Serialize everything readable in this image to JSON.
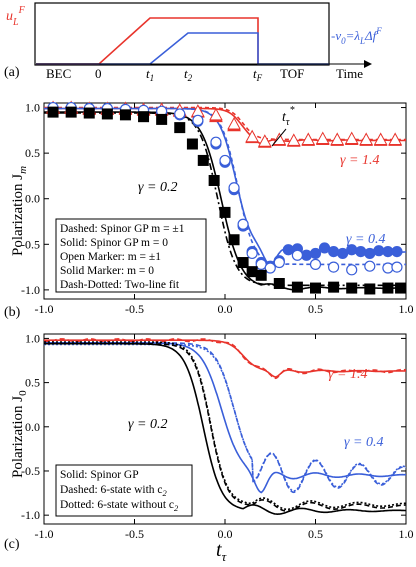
{
  "colors": {
    "red": "#e8342c",
    "blue": "#3a5fd9",
    "black": "#000000"
  },
  "panel_a": {
    "label": "(a)",
    "left_label": "u",
    "left_sub": "L",
    "left_sup": "F",
    "right_label": "ν",
    "right_sub": "0",
    "right_eq": "=λ",
    "right_eq_sub": "L",
    "right_tail": "Δf",
    "right_tail_sup": "F",
    "phases": {
      "bec": "BEC",
      "tof": "TOF"
    },
    "ticks": [
      {
        "base": "0",
        "sub": ""
      },
      {
        "base": "t",
        "sub": "1"
      },
      {
        "base": "t",
        "sub": "2"
      },
      {
        "base": "t",
        "sub": "F"
      }
    ],
    "xlabel": "Time",
    "chart_data": {
      "type": "line",
      "title": "",
      "x": [
        "BEC",
        "0",
        "t1",
        "t2",
        "tF",
        "TOF"
      ],
      "series": [
        {
          "name": "u_L^F",
          "color": "red",
          "points": [
            [
              "BEC",
              0
            ],
            [
              "0",
              0
            ],
            [
              "t1",
              1
            ],
            [
              "tF",
              1
            ],
            [
              "tF",
              0
            ],
            [
              "TOF",
              0
            ]
          ]
        },
        {
          "name": "ν0=λL Δf^F",
          "color": "blue",
          "points": [
            [
              "BEC",
              0
            ],
            [
              "t1",
              0
            ],
            [
              "t2",
              0.72
            ],
            [
              "tF",
              0.72
            ],
            [
              "tF",
              0
            ],
            [
              "TOF",
              0
            ]
          ]
        }
      ]
    }
  },
  "panel_b": {
    "label": "(b)",
    "ylabel_main": "Polarization J",
    "ylabel_sub": "m",
    "annotation": {
      "base": "t",
      "sub": "τ",
      "sup": "*"
    },
    "gamma_labels": [
      {
        "text": "γ = 1.4",
        "color": "red"
      },
      {
        "text": "γ = 0.4",
        "color": "blue"
      },
      {
        "text": "γ = 0.2",
        "color": "black"
      }
    ],
    "legend": [
      "Dashed: Spinor GP m = ±1",
      "Solid: Spinor GP m = 0",
      "Open Marker: m = ±1",
      "Solid Marker: m = 0",
      "Dash-Dotted: Two-line fit"
    ],
    "chart_data": {
      "type": "scatter",
      "title": "",
      "xlabel": "",
      "ylabel": "Polarization J_m",
      "xlim": [
        -1.0,
        1.0
      ],
      "ylim": [
        -1.1,
        1.05
      ],
      "xticks": [
        "-1.0",
        "-0.5",
        "0.0",
        "0.5",
        "1.0"
      ],
      "yticks": [
        "1.0",
        "0.5",
        "0.0",
        "-0.5",
        "-1.0"
      ],
      "series": [
        {
          "name": "γ = 1.4 m=0",
          "marker": "triangle",
          "filled": true,
          "color": "red",
          "x": [
            -0.95,
            -0.85,
            -0.75,
            -0.65,
            -0.55,
            -0.45,
            -0.35,
            -0.25,
            -0.15,
            -0.05,
            0.05,
            0.15,
            0.22,
            0.3,
            0.38,
            0.46,
            0.54,
            0.62,
            0.7,
            0.78,
            0.86,
            0.94
          ],
          "y": [
            0.99,
            0.99,
            0.98,
            0.98,
            0.98,
            0.97,
            0.97,
            0.96,
            0.95,
            0.9,
            0.8,
            0.67,
            0.62,
            0.64,
            0.63,
            0.64,
            0.65,
            0.64,
            0.65,
            0.64,
            0.64,
            0.64
          ]
        },
        {
          "name": "γ = 1.4 m=±1",
          "marker": "triangle",
          "filled": false,
          "color": "red",
          "x": [
            -0.95,
            -0.85,
            -0.75,
            -0.65,
            -0.55,
            -0.45,
            -0.35,
            -0.25,
            -0.15,
            -0.05,
            0.05,
            0.15,
            0.22,
            0.3,
            0.38,
            0.46,
            0.54,
            0.62,
            0.7,
            0.78,
            0.86,
            0.94
          ],
          "y": [
            1.0,
            1.0,
            0.99,
            0.99,
            0.99,
            0.98,
            0.98,
            0.97,
            0.96,
            0.92,
            0.82,
            0.68,
            0.63,
            0.65,
            0.64,
            0.65,
            0.66,
            0.65,
            0.66,
            0.65,
            0.65,
            0.65
          ]
        },
        {
          "name": "γ = 0.4 m=0",
          "marker": "circle",
          "filled": true,
          "color": "blue",
          "x": [
            -0.95,
            -0.85,
            -0.75,
            -0.65,
            -0.55,
            -0.45,
            -0.35,
            -0.25,
            -0.15,
            -0.05,
            0.0,
            0.05,
            0.1,
            0.15,
            0.2,
            0.25,
            0.3,
            0.35,
            0.4,
            0.45,
            0.5,
            0.55,
            0.6,
            0.65,
            0.7,
            0.75,
            0.8,
            0.85,
            0.9,
            0.95
          ],
          "y": [
            0.99,
            0.99,
            0.98,
            0.98,
            0.97,
            0.96,
            0.95,
            0.92,
            0.85,
            0.6,
            0.4,
            0.1,
            -0.3,
            -0.58,
            -0.7,
            -0.74,
            -0.68,
            -0.56,
            -0.55,
            -0.62,
            -0.6,
            -0.54,
            -0.58,
            -0.6,
            -0.56,
            -0.58,
            -0.6,
            -0.57,
            -0.58,
            -0.58
          ]
        },
        {
          "name": "γ = 0.4 m=±1",
          "marker": "circle",
          "filled": false,
          "color": "blue",
          "x": [
            -0.95,
            -0.85,
            -0.75,
            -0.65,
            -0.55,
            -0.45,
            -0.35,
            -0.25,
            -0.15,
            -0.05,
            0.0,
            0.05,
            0.1,
            0.15,
            0.2,
            0.25,
            0.3,
            0.4,
            0.5,
            0.6,
            0.7,
            0.8,
            0.9,
            0.95
          ],
          "y": [
            1.0,
            1.0,
            0.99,
            0.99,
            0.98,
            0.97,
            0.96,
            0.93,
            0.86,
            0.62,
            0.42,
            0.12,
            -0.28,
            -0.6,
            -0.72,
            -0.76,
            -0.7,
            -0.62,
            -0.72,
            -0.75,
            -0.78,
            -0.74,
            -0.76,
            -0.75
          ]
        },
        {
          "name": "γ = 0.2 m=0",
          "marker": "square",
          "filled": true,
          "color": "black",
          "x": [
            -0.95,
            -0.85,
            -0.75,
            -0.65,
            -0.55,
            -0.45,
            -0.35,
            -0.25,
            -0.18,
            -0.12,
            -0.06,
            0.0,
            0.05,
            0.1,
            0.15,
            0.2,
            0.3,
            0.4,
            0.5,
            0.6,
            0.7,
            0.8,
            0.9,
            0.97
          ],
          "y": [
            0.95,
            0.95,
            0.94,
            0.93,
            0.92,
            0.9,
            0.87,
            0.78,
            0.6,
            0.42,
            0.2,
            -0.15,
            -0.45,
            -0.7,
            -0.8,
            -0.84,
            -0.93,
            -0.97,
            -0.98,
            -0.97,
            -0.98,
            -0.99,
            -0.98,
            -0.98
          ]
        }
      ],
      "curves": [
        {
          "name": "γ = 1.4 solid",
          "color": "red",
          "style": "solid"
        },
        {
          "name": "γ = 0.4 solid",
          "color": "blue",
          "style": "solid"
        },
        {
          "name": "γ = 0.2 solid",
          "color": "black",
          "style": "solid"
        },
        {
          "name": "two-line fit",
          "color": "black",
          "style": "dashdot"
        }
      ]
    }
  },
  "panel_c": {
    "label": "(c)",
    "ylabel_main": "Polarization J",
    "ylabel_sub": "0",
    "xlabel_main": "t",
    "xlabel_sub": "τ",
    "gamma_labels": [
      {
        "text": "γ = 1.4",
        "color": "red"
      },
      {
        "text": "γ = 0.4",
        "color": "blue"
      },
      {
        "text": "γ = 0.2",
        "color": "black"
      }
    ],
    "legend": [
      {
        "text": "Solid: Spinor GP",
        "sub": ""
      },
      {
        "text": "Dashed: 6-state with c",
        "sub": "2"
      },
      {
        "text": "Dotted: 6-state without c",
        "sub": "2"
      }
    ],
    "chart_data": {
      "type": "line",
      "title": "",
      "xlabel": "t_τ",
      "ylabel": "Polarization J_0",
      "xlim": [
        -1.0,
        1.0
      ],
      "ylim": [
        -1.1,
        1.05
      ],
      "xticks": [
        "-1.0",
        "-0.5",
        "0.0",
        "0.5",
        "1.0"
      ],
      "yticks": [
        "1.0",
        "0.5",
        "0.0",
        "-0.5",
        "-1.0"
      ],
      "series": [
        {
          "name": "γ = 1.4",
          "color": "red",
          "final": 0.63,
          "transition": 0.2
        },
        {
          "name": "γ = 0.4",
          "color": "blue",
          "final": -0.55,
          "transition": 0.1
        },
        {
          "name": "γ = 0.2",
          "color": "black",
          "final": -0.95,
          "transition": 0.0
        }
      ]
    }
  }
}
